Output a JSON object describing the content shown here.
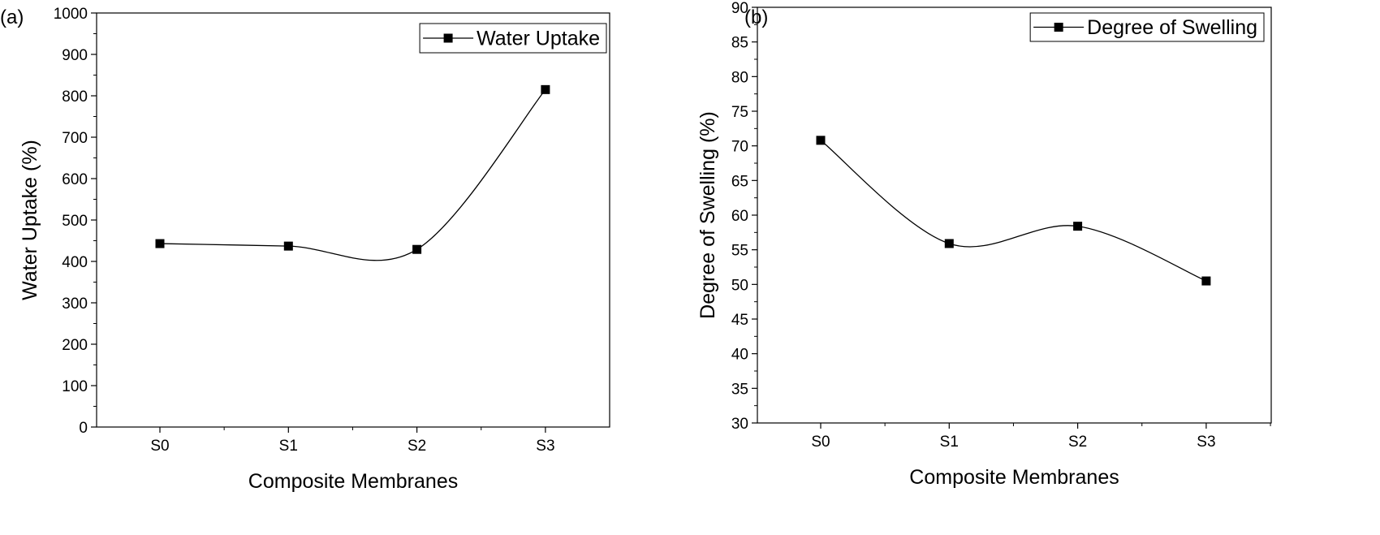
{
  "chart_data": [
    {
      "panel": "(a)",
      "type": "line",
      "smooth": true,
      "categories": [
        "S0",
        "S1",
        "S2",
        "S3"
      ],
      "series": [
        {
          "name": "Water Uptake",
          "values": [
            443,
            437,
            429,
            815
          ]
        }
      ],
      "xlabel": "Composite Membranes",
      "ylabel": "Water Uptake (%)",
      "ylim": [
        0,
        1000
      ],
      "yticks": [
        0,
        100,
        200,
        300,
        400,
        500,
        600,
        700,
        800,
        900,
        1000
      ],
      "grid": false,
      "legend": "top-right",
      "marker": "filled-square",
      "color": "#000000"
    },
    {
      "panel": "(b)",
      "type": "line",
      "smooth": true,
      "categories": [
        "S0",
        "S1",
        "S2",
        "S3"
      ],
      "series": [
        {
          "name": "Degree of Swelling",
          "values": [
            70.8,
            55.9,
            58.4,
            50.5
          ]
        }
      ],
      "xlabel": "Composite Membranes",
      "ylabel": "Degree of Swelling (%)",
      "ylim": [
        30,
        90
      ],
      "yticks": [
        30,
        35,
        40,
        45,
        50,
        55,
        60,
        65,
        70,
        75,
        80,
        85,
        90
      ],
      "grid": false,
      "legend": "top-right",
      "marker": "filled-square",
      "color": "#000000"
    }
  ]
}
